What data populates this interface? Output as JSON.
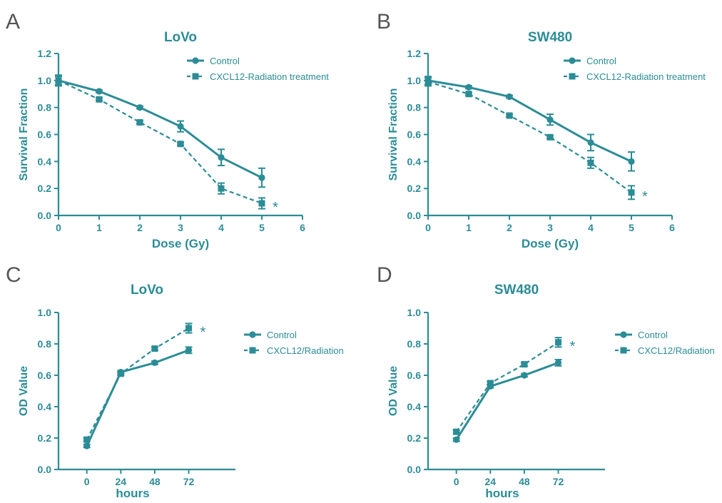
{
  "colors": {
    "series": "#2b8c96",
    "panel_letter": "#555555",
    "background": "#ffffff"
  },
  "chart_data": [
    {
      "panel_label": "A",
      "type": "line",
      "title": "LoVo",
      "xlabel": "Dose (Gy)",
      "ylabel": "Survival Fraction",
      "xlim": [
        0,
        6
      ],
      "ylim": [
        0,
        1.2
      ],
      "x_ticks": [
        "0",
        "1",
        "2",
        "3",
        "4",
        "5",
        "6"
      ],
      "y_ticks": [
        "0.0",
        "0.2",
        "0.4",
        "0.6",
        "0.8",
        "1.0",
        "1.2"
      ],
      "legend_position": "top-right",
      "significance_marker": "*",
      "series": [
        {
          "name": "Control",
          "marker": "circle",
          "line": "solid",
          "x": [
            0,
            1,
            2,
            3,
            4,
            5
          ],
          "values": [
            1.0,
            0.92,
            0.8,
            0.66,
            0.43,
            0.28
          ],
          "errors": [
            0.04,
            0.01,
            0.01,
            0.04,
            0.06,
            0.07
          ]
        },
        {
          "name": "CXCL12-Radiation treatment",
          "marker": "square",
          "line": "dashed",
          "x": [
            0,
            1,
            2,
            3,
            4,
            5
          ],
          "values": [
            1.0,
            0.86,
            0.69,
            0.53,
            0.2,
            0.09
          ],
          "errors": [
            0.03,
            0.01,
            0.01,
            0.01,
            0.04,
            0.04
          ]
        }
      ]
    },
    {
      "panel_label": "B",
      "type": "line",
      "title": "SW480",
      "xlabel": "Dose (Gy)",
      "ylabel": "Survival Fraction",
      "xlim": [
        0,
        6
      ],
      "ylim": [
        0,
        1.2
      ],
      "x_ticks": [
        "0",
        "1",
        "2",
        "3",
        "4",
        "5",
        "6"
      ],
      "y_ticks": [
        "0.0",
        "0.2",
        "0.4",
        "0.6",
        "0.8",
        "1.0",
        "1.2"
      ],
      "legend_position": "top-right",
      "significance_marker": "*",
      "series": [
        {
          "name": "Control",
          "marker": "circle",
          "line": "solid",
          "x": [
            0,
            1,
            2,
            3,
            4,
            5
          ],
          "values": [
            1.0,
            0.95,
            0.88,
            0.71,
            0.54,
            0.4
          ],
          "errors": [
            0.03,
            0.01,
            0.01,
            0.04,
            0.06,
            0.07
          ]
        },
        {
          "name": "CXCL12-Radiation treatment",
          "marker": "square",
          "line": "dashed",
          "x": [
            0,
            1,
            2,
            3,
            4,
            5
          ],
          "values": [
            0.99,
            0.9,
            0.74,
            0.58,
            0.39,
            0.17
          ],
          "errors": [
            0.03,
            0.01,
            0.01,
            0.01,
            0.04,
            0.05
          ]
        }
      ]
    },
    {
      "panel_label": "C",
      "type": "line",
      "title": "LoVo",
      "xlabel": "hours",
      "ylabel": "OD Value",
      "xlim": [
        -20,
        105
      ],
      "ylim": [
        0,
        1.0
      ],
      "x_ticks": [
        "0",
        "24",
        "48",
        "72"
      ],
      "y_ticks": [
        "0.0",
        "0.2",
        "0.4",
        "0.6",
        "0.8",
        "1.0"
      ],
      "legend_position": "right",
      "significance_marker": "*",
      "series": [
        {
          "name": "Control",
          "marker": "circle",
          "line": "solid",
          "x": [
            0,
            24,
            48,
            72
          ],
          "values": [
            0.15,
            0.62,
            0.68,
            0.76
          ],
          "errors": [
            0.01,
            0.01,
            0.01,
            0.02
          ]
        },
        {
          "name": "CXCL12/Radiation",
          "marker": "square",
          "line": "dashed",
          "x": [
            0,
            24,
            48,
            72
          ],
          "values": [
            0.19,
            0.61,
            0.77,
            0.9
          ],
          "errors": [
            0.01,
            0.01,
            0.01,
            0.03
          ]
        }
      ]
    },
    {
      "panel_label": "D",
      "type": "line",
      "title": "SW480",
      "xlabel": "hours",
      "ylabel": "OD Value",
      "xlim": [
        -20,
        105
      ],
      "ylim": [
        0,
        1.0
      ],
      "x_ticks": [
        "0",
        "24",
        "48",
        "72"
      ],
      "y_ticks": [
        "0.0",
        "0.2",
        "0.4",
        "0.6",
        "0.8",
        "1.0"
      ],
      "legend_position": "right",
      "significance_marker": "*",
      "series": [
        {
          "name": "Control",
          "marker": "circle",
          "line": "solid",
          "x": [
            0,
            24,
            48,
            72
          ],
          "values": [
            0.19,
            0.53,
            0.6,
            0.68
          ],
          "errors": [
            0.01,
            0.01,
            0.01,
            0.02
          ]
        },
        {
          "name": "CXCL12/Radiation",
          "marker": "square",
          "line": "dashed",
          "x": [
            0,
            24,
            48,
            72
          ],
          "values": [
            0.24,
            0.55,
            0.67,
            0.81
          ],
          "errors": [
            0.01,
            0.01,
            0.01,
            0.03
          ]
        }
      ]
    }
  ]
}
